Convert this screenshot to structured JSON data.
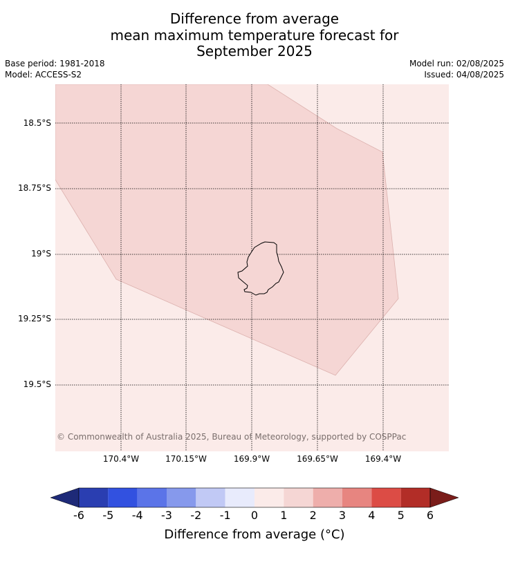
{
  "title": {
    "line1": "Difference from average",
    "line2": "mean maximum temperature forecast for",
    "line3": "September 2025"
  },
  "meta": {
    "base_period": "Base period: 1981-2018",
    "model": "Model: ACCESS-S2",
    "model_run": "Model run: 02/08/2025",
    "issued": "Issued: 04/08/2025"
  },
  "map": {
    "latitude_labels": [
      "18.5°S",
      "18.75°S",
      "19°S",
      "19.25°S",
      "19.5°S"
    ],
    "longitude_labels": [
      "170.4°W",
      "170.15°W",
      "169.9°W",
      "169.65°W",
      "169.4°W"
    ],
    "region_colors": {
      "background": "#fbebe9",
      "anomaly_zone": "#f5d6d4"
    },
    "island_name_icon": "island-outline-icon",
    "copyright": "© Commonwealth of Australia 2025, Bureau of Meteorology, supported by COSPPac"
  },
  "colorbar": {
    "ticks": [
      "-6",
      "-5",
      "-4",
      "-3",
      "-2",
      "-1",
      "0",
      "1",
      "2",
      "3",
      "4",
      "5",
      "6"
    ],
    "colors": [
      "#2a3eb1",
      "#3251e0",
      "#5b74e8",
      "#8699ec",
      "#c1c9f5",
      "#e8ebfc",
      "#fbebe9",
      "#f5d6d4",
      "#eeaeab",
      "#e78580",
      "#dc4c45",
      "#b22d27"
    ],
    "extend_low_color": "#1e2a78",
    "extend_high_color": "#7a1d1a",
    "label": "Difference from average (°C)"
  }
}
